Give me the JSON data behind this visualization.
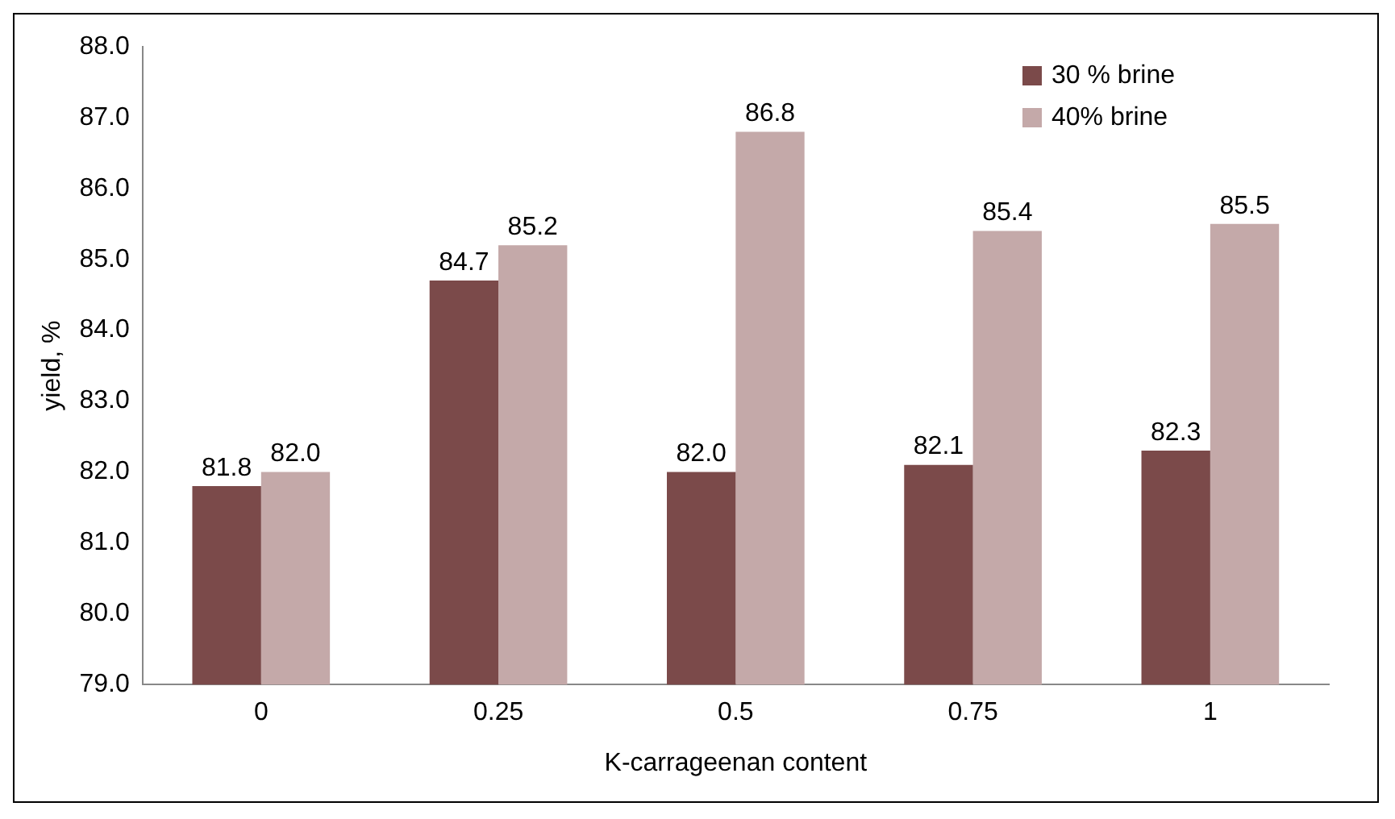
{
  "chart_data": {
    "type": "bar",
    "xlabel": "K-carrageenan content",
    "ylabel": "yield, %",
    "categories": [
      "0",
      "0.25",
      "0.5",
      "0.75",
      "1"
    ],
    "series": [
      {
        "name": "30 % brine",
        "color": "#7b4a4a",
        "values": [
          81.8,
          84.7,
          82.0,
          82.1,
          82.3
        ],
        "value_labels": [
          "81.8",
          "84.7",
          "82.0",
          "82.1",
          "82.3"
        ]
      },
      {
        "name": "40% brine",
        "color": "#c4a9a9",
        "values": [
          82.0,
          85.2,
          86.8,
          85.4,
          85.5
        ],
        "value_labels": [
          "82.0",
          "85.2",
          "86.8",
          "85.4",
          "85.5"
        ]
      }
    ],
    "ylim": [
      79,
      88
    ],
    "yticks": [
      {
        "value": 79,
        "label": "79.0"
      },
      {
        "value": 80,
        "label": "80.0"
      },
      {
        "value": 81,
        "label": "81.0"
      },
      {
        "value": 82,
        "label": "82.0"
      },
      {
        "value": 83,
        "label": "83.0"
      },
      {
        "value": 84,
        "label": "84.0"
      },
      {
        "value": 85,
        "label": "85.0"
      },
      {
        "value": 86,
        "label": "86.0"
      },
      {
        "value": 87,
        "label": "87.0"
      },
      {
        "value": 88,
        "label": "88.0"
      }
    ],
    "grid": false,
    "legend": "top right"
  }
}
